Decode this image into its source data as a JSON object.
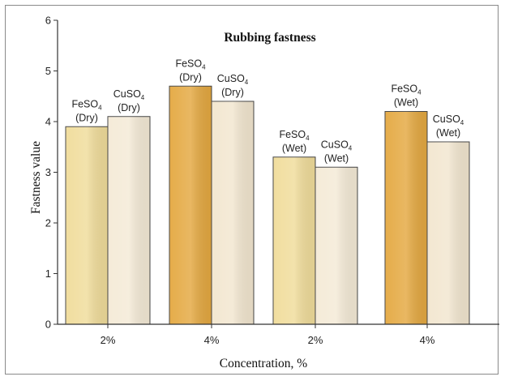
{
  "chart_data": {
    "type": "bar",
    "title": "Rubbing fastness",
    "xlabel": "Concentration, %",
    "ylabel": "Fastness value",
    "ylim": [
      0,
      6
    ],
    "yticks": [
      "0",
      "1",
      "2",
      "3",
      "4",
      "5",
      "6"
    ],
    "groups": [
      {
        "label": "2%",
        "bars": [
          {
            "formula": "FeSO",
            "subscript": "4",
            "condition": "(Dry)",
            "value": 3.9,
            "color": "#f0dc9a"
          },
          {
            "formula": "CuSO",
            "subscript": "4",
            "condition": "(Dry)",
            "value": 4.1,
            "color": "#f4ead6"
          }
        ]
      },
      {
        "label": "4%",
        "bars": [
          {
            "formula": "FeSO",
            "subscript": "4",
            "condition": "(Dry)",
            "value": 4.7,
            "color": "#e4a840"
          },
          {
            "formula": "CuSO",
            "subscript": "4",
            "condition": "(Dry)",
            "value": 4.4,
            "color": "#f2e6cf"
          }
        ]
      },
      {
        "label": "2%",
        "bars": [
          {
            "formula": "FeSO",
            "subscript": "4",
            "condition": "(Wet)",
            "value": 3.3,
            "color": "#f0dc9a"
          },
          {
            "formula": "CuSO",
            "subscript": "4",
            "condition": "(Wet)",
            "value": 3.1,
            "color": "#f4ead6"
          }
        ]
      },
      {
        "label": "4%",
        "bars": [
          {
            "formula": "FeSO",
            "subscript": "4",
            "condition": "(Wet)",
            "value": 4.2,
            "color": "#e4a840"
          },
          {
            "formula": "CuSO",
            "subscript": "4",
            "condition": "(Wet)",
            "value": 3.6,
            "color": "#f2e6cf"
          }
        ]
      }
    ]
  }
}
